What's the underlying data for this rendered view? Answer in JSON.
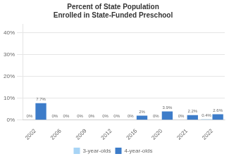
{
  "chart_data": {
    "type": "bar",
    "title": "Percent of State Population\nEnrolled in State-Funded Preschool",
    "categories": [
      "2002",
      "2006",
      "2009",
      "2012",
      "2016",
      "2020",
      "2021",
      "2022"
    ],
    "series": [
      {
        "name": "3-year-olds",
        "color": "#a8d4f5",
        "values": [
          0.0,
          0.0,
          0.0,
          0.0,
          0.0,
          0.0,
          0.0,
          0.4
        ],
        "value_labels": [
          "0%",
          "0%",
          "0%",
          "0%",
          "0%",
          "0%",
          "0%",
          "0.4%"
        ]
      },
      {
        "name": "4-year-olds",
        "color": "#3d7cc9",
        "values": [
          7.7,
          0.0,
          0.0,
          0.0,
          2.0,
          3.9,
          2.2,
          2.6
        ],
        "value_labels": [
          "7.7%",
          "0%",
          "0%",
          "0%",
          "2%",
          "3.9%",
          "2.2%",
          "2.6%"
        ]
      }
    ],
    "ylim": [
      0,
      44
    ],
    "yticks": [
      {
        "value": 0,
        "label": "0%"
      },
      {
        "value": 10,
        "label": "10%"
      },
      {
        "value": 20,
        "label": "20%"
      },
      {
        "value": 30,
        "label": "30%"
      },
      {
        "value": 40,
        "label": "40%"
      }
    ],
    "grid": true,
    "legend": "bottom",
    "data_labels": true
  }
}
